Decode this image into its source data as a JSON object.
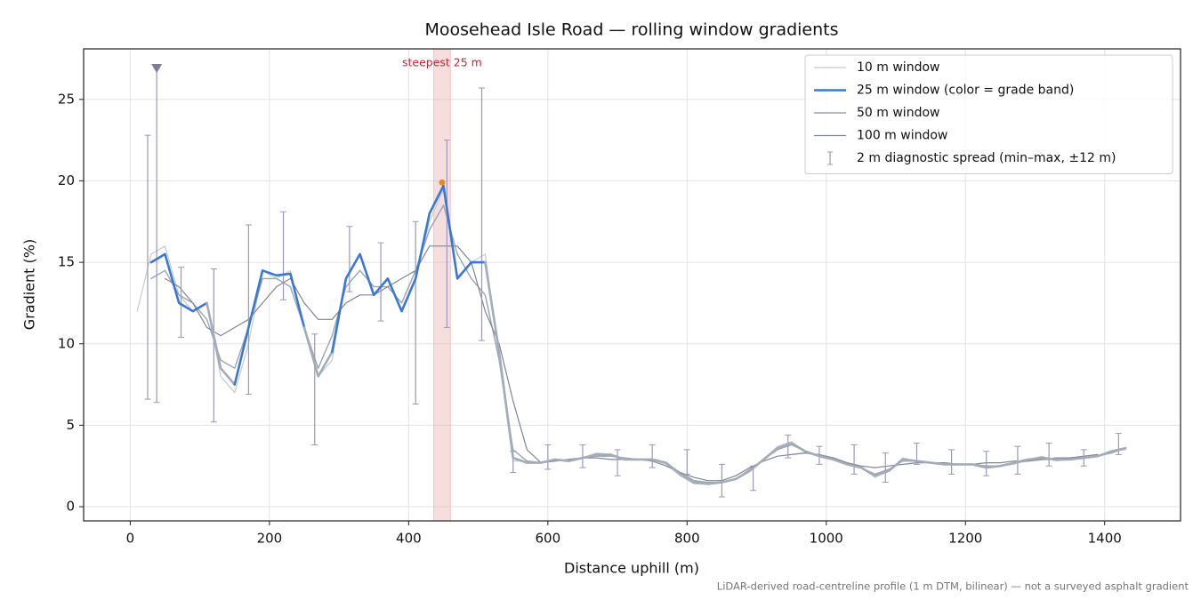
{
  "chart_data": {
    "type": "line",
    "title": "Moosehead Isle Road — rolling window gradients",
    "x_label": "Distance uphill (m)",
    "y_label": "Gradient (%)",
    "footnote": "LiDAR-derived road-centreline profile (1 m DTM, bilinear) — not a surveyed asphalt gradient",
    "xlim": [
      -67,
      1509
    ],
    "ylim": [
      -0.87,
      28.1
    ],
    "xticks": [
      0,
      200,
      400,
      600,
      800,
      1000,
      1200,
      1400
    ],
    "yticks": [
      0,
      5,
      10,
      15,
      20,
      25
    ],
    "grid": true,
    "legend": "upper right",
    "x": [
      10,
      30,
      50,
      70,
      90,
      110,
      130,
      150,
      170,
      190,
      210,
      230,
      250,
      270,
      290,
      310,
      330,
      350,
      370,
      390,
      410,
      430,
      450,
      470,
      490,
      510,
      530,
      550,
      570,
      590,
      610,
      630,
      650,
      670,
      690,
      710,
      730,
      750,
      770,
      790,
      810,
      830,
      850,
      870,
      890,
      910,
      930,
      950,
      970,
      990,
      1010,
      1030,
      1050,
      1070,
      1090,
      1110,
      1130,
      1150,
      1170,
      1190,
      1210,
      1230,
      1250,
      1270,
      1290,
      1310,
      1330,
      1350,
      1370,
      1390,
      1410,
      1430
    ],
    "series": [
      {
        "name": "10 m window",
        "color": "#c4cbd5",
        "width": 1.2,
        "values": [
          12,
          15.5,
          16,
          13,
          12,
          12.5,
          8,
          7,
          10,
          14.5,
          14,
          14.5,
          11,
          8,
          9,
          14,
          15.5,
          13,
          14,
          12,
          14,
          17.5,
          19.5,
          14,
          15,
          15.5,
          9,
          2.8,
          2.8,
          2.7,
          2.9,
          2.8,
          3.0,
          3.3,
          3.2,
          2.9,
          2.9,
          2.9,
          2.6,
          1.9,
          1.4,
          1.4,
          1.5,
          1.7,
          2.2,
          2.9,
          3.7,
          4.0,
          3.3,
          3.1,
          2.9,
          2.6,
          2.5,
          1.8,
          2.2,
          3.0,
          2.8,
          2.7,
          2.6,
          2.6,
          2.6,
          2.4,
          2.5,
          2.6,
          2.9,
          3.1,
          2.8,
          2.9,
          3.0,
          3.1,
          3.4,
          3.5
        ]
      },
      {
        "name": "25 m window (color = grade band)",
        "color": "#3a78d4",
        "width": 2.6,
        "values": [
          null,
          15,
          15.5,
          12.5,
          12,
          12.5,
          8.5,
          7.5,
          11,
          14.5,
          14.2,
          14.3,
          11,
          8,
          9.5,
          14,
          15.5,
          13,
          14,
          12,
          14,
          18,
          19.7,
          14,
          15,
          15,
          9.5,
          3,
          2.7,
          2.7,
          2.9,
          2.8,
          3.0,
          3.2,
          3.2,
          2.9,
          2.9,
          2.9,
          2.7,
          2.0,
          1.5,
          1.4,
          1.5,
          1.7,
          2.2,
          2.9,
          3.6,
          3.9,
          3.4,
          3.1,
          2.9,
          2.6,
          2.4,
          1.9,
          2.2,
          2.9,
          2.8,
          2.7,
          2.6,
          2.6,
          2.6,
          2.4,
          2.5,
          2.7,
          2.9,
          3.0,
          2.9,
          2.9,
          3.0,
          3.1,
          3.4,
          3.6
        ],
        "colors": [
          "#3a78d4",
          "#3a78d4",
          "#3a78d4",
          "#3a78d4",
          "#3a78d4",
          "#3a78d4",
          "#a3acb8",
          "#a3acb8",
          "#3a78d4",
          "#3a78d4",
          "#3a78d4",
          "#3a78d4",
          "#3a78d4",
          "#a3acb8",
          "#a3acb8",
          "#3a78d4",
          "#3a78d4",
          "#3a78d4",
          "#3a78d4",
          "#3a78d4",
          "#3a78d4",
          "#3a78d4",
          "#3a78d4",
          "#3a78d4",
          "#3a78d4",
          "#3a78d4",
          "#a3acb8",
          "#a3acb8",
          "#a3acb8",
          "#a3acb8",
          "#a3acb8",
          "#a3acb8",
          "#a3acb8",
          "#a3acb8",
          "#a3acb8",
          "#a3acb8",
          "#a3acb8",
          "#a3acb8",
          "#a3acb8",
          "#a3acb8",
          "#a3acb8",
          "#a3acb8",
          "#a3acb8",
          "#a3acb8",
          "#a3acb8",
          "#a3acb8",
          "#a3acb8",
          "#a3acb8",
          "#a3acb8",
          "#a3acb8",
          "#a3acb8",
          "#a3acb8",
          "#a3acb8",
          "#a3acb8",
          "#a3acb8",
          "#a3acb8",
          "#a3acb8",
          "#a3acb8",
          "#a3acb8",
          "#a3acb8",
          "#a3acb8",
          "#a3acb8",
          "#a3acb8",
          "#a3acb8",
          "#a3acb8",
          "#a3acb8",
          "#a3acb8",
          "#a3acb8",
          "#a3acb8",
          "#a3acb8",
          "#a3acb8",
          "#a3acb8"
        ]
      },
      {
        "name": "50 m window",
        "color": "#9ba4b1",
        "width": 1.4,
        "values": [
          null,
          14,
          14.5,
          13,
          12.5,
          11.5,
          9,
          8.5,
          11,
          14,
          14,
          13.5,
          11,
          8.5,
          10.5,
          13.5,
          14.5,
          13.5,
          13.5,
          12.5,
          14.5,
          17,
          18.5,
          15.5,
          14,
          13,
          9,
          3.5,
          2.8,
          2.7,
          2.8,
          2.9,
          3.0,
          3.1,
          3.1,
          3.0,
          2.9,
          2.9,
          2.7,
          2.1,
          1.6,
          1.5,
          1.5,
          1.7,
          2.3,
          2.9,
          3.5,
          3.8,
          3.4,
          3.1,
          3.0,
          2.7,
          2.4,
          2.0,
          2.3,
          2.8,
          2.8,
          2.7,
          2.6,
          2.6,
          2.6,
          2.5,
          2.5,
          2.7,
          2.8,
          2.9,
          2.9,
          3.0,
          3.0,
          3.1,
          3.3,
          3.6
        ]
      },
      {
        "name": "100 m window",
        "color": "#7f8794",
        "width": 1.2,
        "values": [
          null,
          null,
          14,
          13.5,
          12.5,
          11,
          10.5,
          11,
          11.5,
          12.5,
          13.5,
          14,
          12.5,
          11.5,
          11.5,
          12.5,
          13,
          13,
          13.5,
          14,
          14.5,
          16,
          16,
          16,
          15,
          12,
          10,
          6.5,
          3.5,
          2.7,
          2.8,
          2.9,
          3.0,
          3.0,
          2.9,
          2.9,
          2.9,
          2.8,
          2.5,
          2.1,
          1.8,
          1.6,
          1.6,
          1.9,
          2.4,
          2.8,
          3.1,
          3.2,
          3.3,
          3.2,
          3.0,
          2.7,
          2.5,
          2.4,
          2.5,
          2.6,
          2.7,
          2.7,
          2.7,
          2.6,
          2.6,
          2.7,
          2.7,
          2.8,
          2.8,
          2.9,
          3.0,
          3.0,
          3.1,
          3.2,
          null,
          null
        ]
      }
    ],
    "errorbars": {
      "name": "2 m diagnostic spread (min–max, ±12 m)",
      "color": "#9d97bb",
      "x": [
        25,
        38,
        73,
        120,
        170,
        220,
        265,
        315,
        360,
        410,
        455,
        505,
        550,
        600,
        650,
        700,
        750,
        800,
        850,
        895,
        945,
        990,
        1040,
        1085,
        1130,
        1180,
        1230,
        1275,
        1320,
        1370,
        1420
      ],
      "low": [
        6.6,
        6.4,
        10.4,
        5.2,
        6.9,
        12.7,
        3.8,
        13.2,
        11.4,
        6.3,
        11,
        10.2,
        2.1,
        2.3,
        2.4,
        1.9,
        2.4,
        2.0,
        0.6,
        1.0,
        3.0,
        2.6,
        2.0,
        1.5,
        2.6,
        2.0,
        1.9,
        2.0,
        2.5,
        2.5,
        3.2
      ],
      "high": [
        22.8,
        26.9,
        14.7,
        14.6,
        17.3,
        18.1,
        10.6,
        17.2,
        16.2,
        17.5,
        22.5,
        25.7,
        3.4,
        3.8,
        3.8,
        3.5,
        3.8,
        3.5,
        2.6,
        2.5,
        4.4,
        3.7,
        3.8,
        3.3,
        3.9,
        3.5,
        3.4,
        3.7,
        3.9,
        3.5,
        4.5
      ]
    },
    "steepest": {
      "label": "steepest 25 m",
      "x0": 436,
      "x1": 460,
      "peak_x": 448,
      "peak_y": 19.9,
      "color": "#e8a0a0",
      "peak_color": "#e08a2a",
      "label_color": "#c0283a"
    }
  }
}
